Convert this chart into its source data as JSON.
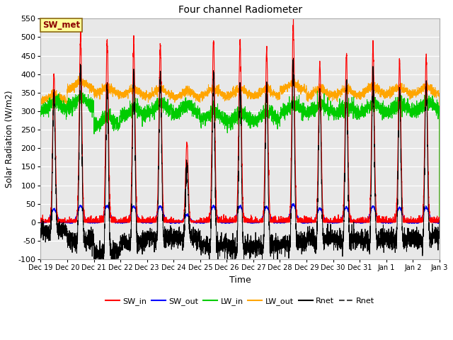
{
  "title": "Four channel Radiometer",
  "xlabel": "Time",
  "ylabel": "Solar Radiation (W/m2)",
  "ylim": [
    -100,
    550
  ],
  "yticks": [
    -100,
    -50,
    0,
    50,
    100,
    150,
    200,
    250,
    300,
    350,
    400,
    450,
    500,
    550
  ],
  "annotation_text": "SW_met",
  "annotation_color": "#8B0000",
  "annotation_bg": "#FFFF99",
  "annotation_border": "#8B6914",
  "colors": {
    "SW_in": "#FF0000",
    "SW_out": "#0000FF",
    "LW_in": "#00CC00",
    "LW_out": "#FFA500",
    "Rnet_black": "#000000"
  },
  "bg_color": "#E8E8E8",
  "fig_bg": "#FFFFFF",
  "x_tick_labels": [
    "Dec 19",
    "Dec 20",
    "Dec 21",
    "Dec 22",
    "Dec 23",
    "Dec 24",
    "Dec 25",
    "Dec 26",
    "Dec 27",
    "Dec 28",
    "Dec 29",
    "Dec 30",
    "Dec 31",
    "Jan 1",
    "Jan 2",
    "Jan 3"
  ],
  "day_peaks_sw": [
    400,
    495,
    490,
    480,
    480,
    215,
    490,
    490,
    465,
    535,
    425,
    455,
    475,
    435,
    445
  ],
  "lw_in_base": [
    300,
    310,
    260,
    285,
    295,
    290,
    275,
    270,
    275,
    295,
    295,
    290,
    295,
    295,
    300
  ],
  "lw_out_base": [
    325,
    360,
    345,
    340,
    340,
    335,
    340,
    340,
    340,
    355,
    340,
    340,
    345,
    345,
    345
  ]
}
